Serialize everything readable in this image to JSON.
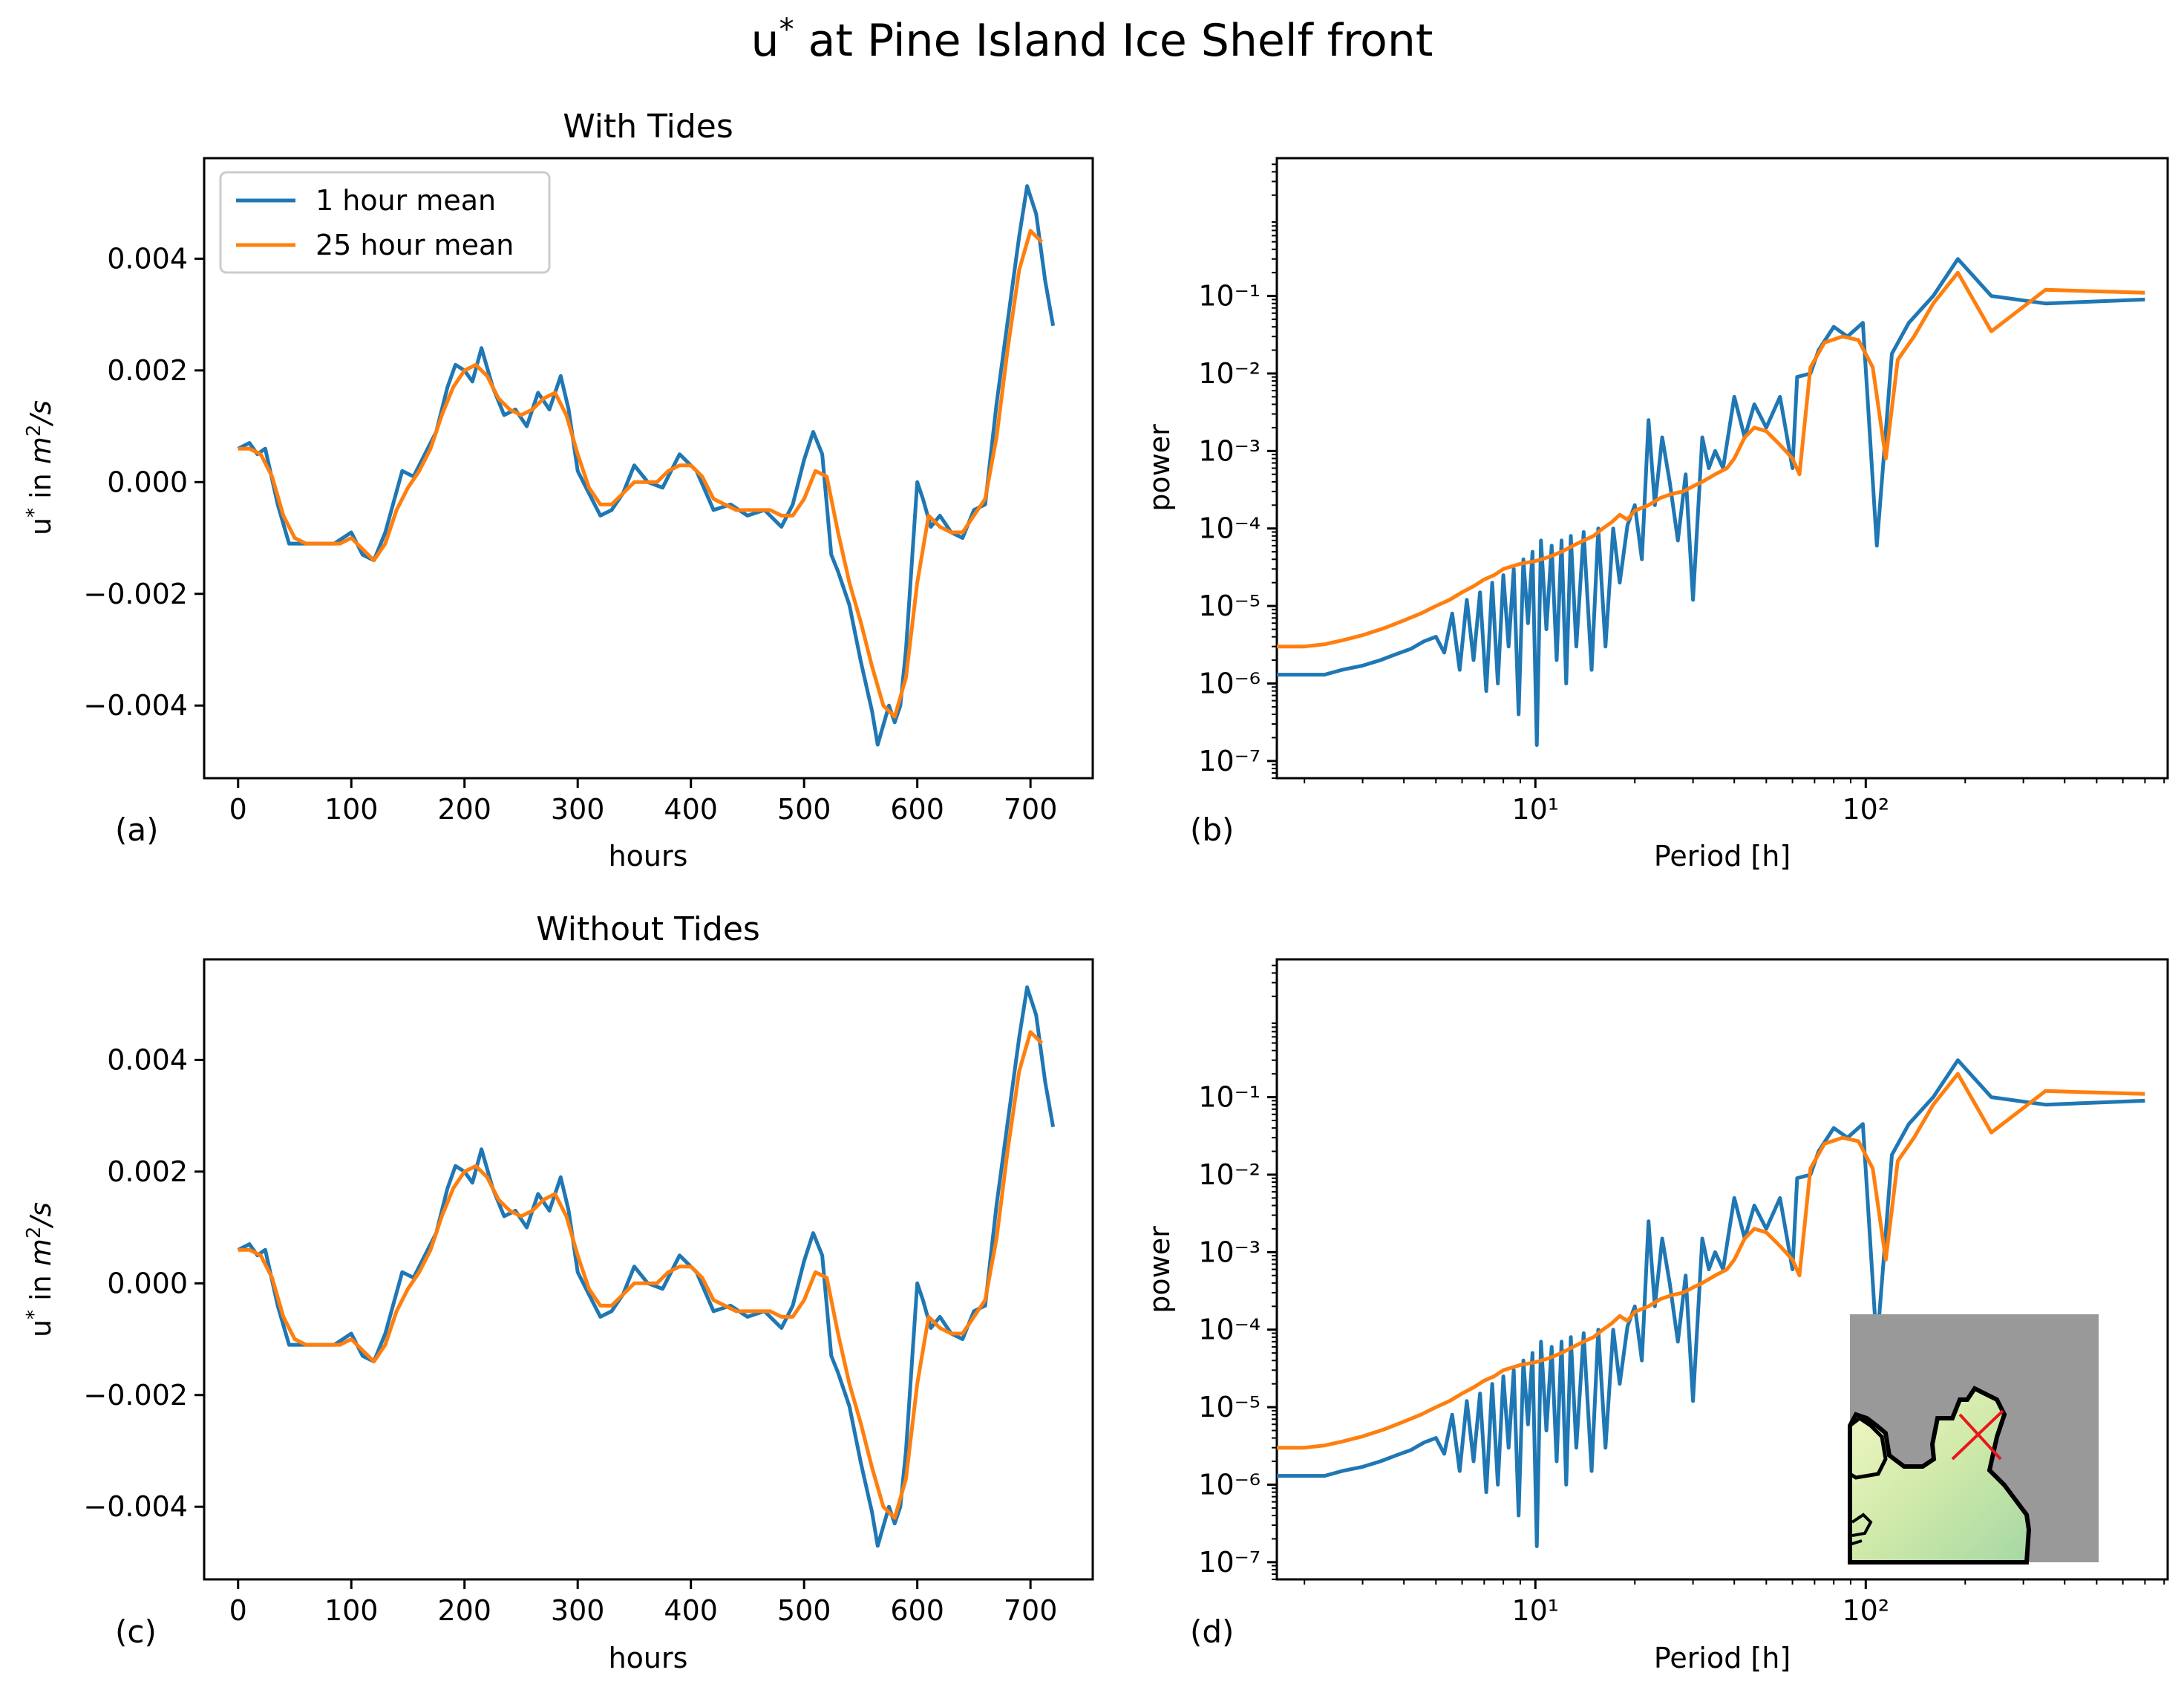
{
  "figure": {
    "title": "u* at Pine Island Ice Shelf front"
  },
  "colors": {
    "series1": "#1f77b4",
    "series2": "#ff7f0e",
    "inset_land": "#999999",
    "inset_marker": "#e8171c"
  },
  "legend": {
    "entries": [
      "1 hour mean",
      "25 hour mean"
    ],
    "placement": "upper-left"
  },
  "chart_data": [
    {
      "panel": "(a)",
      "type": "line",
      "title": "With Tides",
      "xlabel": "hours",
      "ylabel": "u* in m²/s",
      "xlim": [
        -30,
        755
      ],
      "ylim": [
        -0.0053,
        0.0058
      ],
      "xticks": [
        0,
        100,
        200,
        300,
        400,
        500,
        600,
        700
      ],
      "yticks": [
        -0.004,
        -0.002,
        0.0,
        0.002,
        0.004
      ],
      "ytick_labels": [
        "−0.004",
        "−0.002",
        "0.000",
        "0.002",
        "0.004"
      ],
      "legend": true,
      "series": [
        {
          "name": "1 hour mean",
          "x": [
            0,
            10,
            17,
            24,
            35,
            45,
            58,
            70,
            85,
            100,
            110,
            120,
            130,
            145,
            155,
            165,
            175,
            185,
            192,
            200,
            207,
            215,
            225,
            235,
            245,
            255,
            265,
            275,
            285,
            292,
            300,
            310,
            320,
            330,
            340,
            350,
            362,
            375,
            390,
            405,
            420,
            435,
            450,
            465,
            480,
            490,
            500,
            508,
            516,
            524,
            530,
            540,
            550,
            560,
            565,
            575,
            580,
            585,
            590,
            600,
            605,
            612,
            620,
            630,
            640,
            650,
            660,
            670,
            680,
            690,
            697,
            705,
            713,
            720
          ],
          "values": [
            0.0006,
            0.0007,
            0.0005,
            0.0006,
            -0.0004,
            -0.0011,
            -0.0011,
            -0.0011,
            -0.0011,
            -0.0009,
            -0.0013,
            -0.0014,
            -0.0009,
            0.0002,
            0.0001,
            0.0005,
            0.0009,
            0.0017,
            0.0021,
            0.002,
            0.0018,
            0.0024,
            0.0017,
            0.0012,
            0.0013,
            0.001,
            0.0016,
            0.0013,
            0.0019,
            0.0013,
            0.0002,
            -0.0002,
            -0.0006,
            -0.0005,
            -0.0002,
            0.0003,
            0.0,
            -0.0001,
            0.0005,
            0.0002,
            -0.0005,
            -0.0004,
            -0.0006,
            -0.0005,
            -0.0008,
            -0.0004,
            0.0004,
            0.0009,
            0.0005,
            -0.0013,
            -0.0016,
            -0.0022,
            -0.0032,
            -0.0041,
            -0.0047,
            -0.004,
            -0.0043,
            -0.004,
            -0.003,
            0.0,
            -0.0003,
            -0.0008,
            -0.0006,
            -0.0009,
            -0.001,
            -0.0005,
            -0.0004,
            0.0014,
            0.0029,
            0.0044,
            0.0053,
            0.0048,
            0.0036,
            0.0028
          ]
        },
        {
          "name": "25 hour mean",
          "x": [
            0,
            10,
            20,
            30,
            40,
            50,
            60,
            70,
            80,
            90,
            100,
            110,
            120,
            130,
            140,
            150,
            160,
            170,
            180,
            190,
            200,
            210,
            220,
            230,
            240,
            250,
            260,
            270,
            280,
            290,
            300,
            310,
            320,
            330,
            340,
            350,
            360,
            370,
            380,
            390,
            400,
            410,
            420,
            430,
            440,
            450,
            460,
            470,
            480,
            490,
            500,
            510,
            520,
            530,
            540,
            550,
            560,
            570,
            580,
            590,
            600,
            610,
            620,
            630,
            640,
            650,
            660,
            670,
            680,
            690,
            700,
            710
          ],
          "values": [
            0.0006,
            0.0006,
            0.0005,
            0.0001,
            -0.0006,
            -0.001,
            -0.0011,
            -0.0011,
            -0.0011,
            -0.0011,
            -0.001,
            -0.0012,
            -0.0014,
            -0.0011,
            -0.0005,
            -0.0001,
            0.0002,
            0.0006,
            0.0012,
            0.0017,
            0.002,
            0.0021,
            0.0019,
            0.0015,
            0.0013,
            0.0012,
            0.0013,
            0.0015,
            0.0016,
            0.0012,
            0.0005,
            -0.0001,
            -0.0004,
            -0.0004,
            -0.0002,
            0.0,
            0.0,
            0.0,
            0.0002,
            0.0003,
            0.0003,
            0.0001,
            -0.0003,
            -0.0004,
            -0.0005,
            -0.0005,
            -0.0005,
            -0.0005,
            -0.0006,
            -0.0006,
            -0.0003,
            0.0002,
            0.0001,
            -0.0009,
            -0.0018,
            -0.0025,
            -0.0033,
            -0.004,
            -0.0042,
            -0.0035,
            -0.0018,
            -0.0006,
            -0.0008,
            -0.0009,
            -0.0009,
            -0.0006,
            -0.0003,
            0.0008,
            0.0024,
            0.0038,
            0.0045,
            0.0043
          ]
        }
      ]
    },
    {
      "panel": "(b)",
      "type": "line",
      "title": "",
      "xlabel": "Period [h]",
      "ylabel": "power",
      "xscale": "log",
      "yscale": "log",
      "xlim": [
        1.65,
        820
      ],
      "ylim": [
        6e-08,
        6.0
      ],
      "xticks": [
        10,
        100
      ],
      "xtick_labels": [
        "10¹",
        "10²"
      ],
      "yticks": [
        1e-07,
        1e-06,
        1e-05,
        0.0001,
        0.001,
        0.01,
        0.1
      ],
      "ytick_labels": [
        "10⁻⁷",
        "10⁻⁶",
        "10⁻⁵",
        "10⁻⁴",
        "10⁻³",
        "10⁻²",
        "10⁻¹"
      ],
      "series": [
        {
          "name": "1 hour mean",
          "x": [
            1.65,
            2.0,
            2.3,
            2.6,
            3.0,
            3.4,
            3.8,
            4.2,
            4.6,
            5.0,
            5.3,
            5.6,
            5.9,
            6.2,
            6.5,
            6.8,
            7.1,
            7.4,
            7.7,
            8.0,
            8.3,
            8.6,
            8.9,
            9.2,
            9.5,
            9.8,
            10.1,
            10.4,
            10.8,
            11.2,
            11.6,
            12.0,
            12.4,
            12.8,
            13.3,
            14.0,
            14.8,
            15.5,
            16.3,
            17.2,
            18.0,
            19.0,
            20.0,
            21.0,
            22.0,
            23.0,
            24.2,
            25.5,
            27.0,
            28.5,
            30.0,
            32.0,
            33.5,
            35.0,
            37.0,
            40.0,
            43.0,
            46.0,
            50.0,
            55.0,
            60.0,
            62.0,
            68.0,
            72.0,
            80.0,
            88.0,
            98.0,
            108.0,
            120.0,
            135.0,
            160.0,
            190.0,
            240.0,
            350.0,
            700.0
          ],
          "values": [
            1.3e-06,
            1.3e-06,
            1.3e-06,
            1.5e-06,
            1.7e-06,
            2e-06,
            2.4e-06,
            2.8e-06,
            3.5e-06,
            4e-06,
            2.5e-06,
            8e-06,
            1.5e-06,
            1.2e-05,
            2e-06,
            1.5e-05,
            8e-07,
            2e-05,
            1e-06,
            2.5e-05,
            3e-06,
            3e-05,
            4e-07,
            4e-05,
            6e-06,
            5e-05,
            1.6e-07,
            7e-05,
            5e-06,
            6e-05,
            2e-06,
            7e-05,
            1e-06,
            8e-05,
            3e-06,
            9e-05,
            1.5e-06,
            0.0001,
            3e-06,
            0.0001,
            2e-05,
            0.00011,
            0.0002,
            4e-05,
            0.0025,
            0.0002,
            0.0015,
            0.0004,
            7e-05,
            0.0005,
            1.2e-05,
            0.0015,
            0.0006,
            0.001,
            0.0006,
            0.005,
            0.0015,
            0.004,
            0.002,
            0.005,
            0.0006,
            0.009,
            0.01,
            0.02,
            0.04,
            0.03,
            0.045,
            6e-05,
            0.018,
            0.045,
            0.1,
            0.3,
            0.1,
            0.08,
            0.09
          ]
        },
        {
          "name": "25 hour mean",
          "x": [
            1.65,
            2.0,
            2.3,
            2.6,
            3.0,
            3.5,
            4.0,
            4.5,
            5.0,
            5.5,
            6.0,
            6.5,
            7.0,
            7.5,
            8.0,
            9.0,
            10.0,
            11.0,
            12.0,
            13.0,
            14.0,
            15.0,
            16.0,
            17.0,
            18.0,
            19.0,
            20.0,
            22.0,
            24.0,
            26.0,
            28.0,
            30.0,
            32.0,
            35.0,
            38.0,
            40.0,
            43.0,
            46.0,
            50.0,
            55.0,
            60.0,
            63.0,
            68.0,
            75.0,
            85.0,
            95.0,
            105.0,
            115.0,
            125.0,
            140.0,
            160.0,
            190.0,
            240.0,
            350.0,
            700.0
          ],
          "values": [
            3e-06,
            3e-06,
            3.2e-06,
            3.6e-06,
            4.2e-06,
            5.2e-06,
            6.5e-06,
            8e-06,
            1e-05,
            1.2e-05,
            1.5e-05,
            1.8e-05,
            2.2e-05,
            2.5e-05,
            3e-05,
            3.5e-05,
            3.8e-05,
            4.3e-05,
            5e-05,
            6e-05,
            7e-05,
            8e-05,
            0.0001,
            0.00012,
            0.00015,
            0.00013,
            0.00017,
            0.0002,
            0.00025,
            0.00028,
            0.0003,
            0.00035,
            0.0004,
            0.0005,
            0.0006,
            0.0008,
            0.0015,
            0.002,
            0.0018,
            0.0012,
            0.0008,
            0.0005,
            0.012,
            0.025,
            0.03,
            0.027,
            0.012,
            0.0008,
            0.015,
            0.03,
            0.08,
            0.2,
            0.035,
            0.12,
            0.11
          ]
        }
      ]
    },
    {
      "panel": "(c)",
      "type": "line",
      "title": "Without Tides",
      "xlabel": "hours",
      "ylabel": "u* in m²/s",
      "xlim": [
        -30,
        755
      ],
      "ylim": [
        -0.0053,
        0.0058
      ],
      "xticks": [
        0,
        100,
        200,
        300,
        400,
        500,
        600,
        700
      ],
      "yticks": [
        -0.004,
        -0.002,
        0.0,
        0.002,
        0.004
      ],
      "ytick_labels": [
        "−0.004",
        "−0.002",
        "0.000",
        "0.002",
        "0.004"
      ],
      "legend": false,
      "series_same_as": "(a)"
    },
    {
      "panel": "(d)",
      "type": "line",
      "title": "",
      "xlabel": "Period [h]",
      "ylabel": "power",
      "xscale": "log",
      "yscale": "log",
      "xlim": [
        1.65,
        820
      ],
      "ylim": [
        6e-08,
        6.0
      ],
      "xticks": [
        10,
        100
      ],
      "xtick_labels": [
        "10¹",
        "10²"
      ],
      "yticks": [
        1e-07,
        1e-06,
        1e-05,
        0.0001,
        0.001,
        0.01,
        0.1
      ],
      "ytick_labels": [
        "10⁻⁷",
        "10⁻⁶",
        "10⁻⁵",
        "10⁻⁴",
        "10⁻³",
        "10⁻²",
        "10⁻¹"
      ],
      "series_same_as": "(b)",
      "inset": "map"
    }
  ]
}
